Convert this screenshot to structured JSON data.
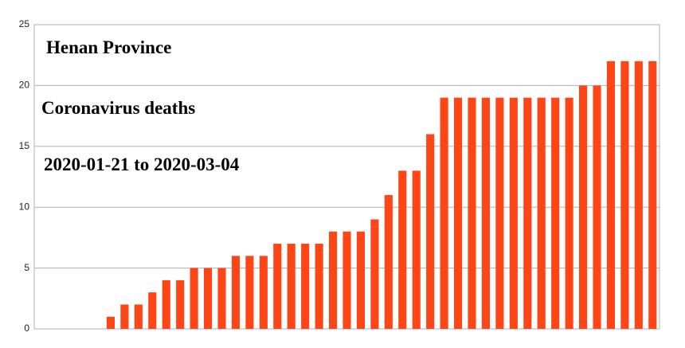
{
  "chart_data": {
    "type": "bar",
    "title": "Henan Province",
    "subtitle": "Coronavirus deaths",
    "date_range": "2020-01-21 to 2020-03-04",
    "categories": [
      null,
      null,
      null,
      null,
      null,
      null,
      null,
      null,
      null,
      null,
      null,
      null,
      null,
      null,
      null,
      null,
      null,
      null,
      null,
      null,
      null,
      null,
      null,
      null,
      null,
      null,
      null,
      null,
      null,
      null,
      null,
      null,
      null,
      null,
      null,
      null,
      null,
      null,
      null,
      null,
      null,
      null,
      null,
      null,
      null
    ],
    "values": [
      0,
      0,
      0,
      0,
      0,
      1,
      2,
      2,
      3,
      4,
      4,
      5,
      5,
      5,
      6,
      6,
      6,
      7,
      7,
      7,
      7,
      8,
      8,
      8,
      9,
      11,
      13,
      13,
      16,
      19,
      19,
      19,
      19,
      19,
      19,
      19,
      19,
      19,
      19,
      20,
      20,
      22,
      22,
      22,
      22
    ],
    "color": "#fd4515",
    "ylim": [
      0,
      25
    ],
    "yticks": [
      0,
      5,
      10,
      15,
      20,
      25
    ],
    "grid": true
  }
}
